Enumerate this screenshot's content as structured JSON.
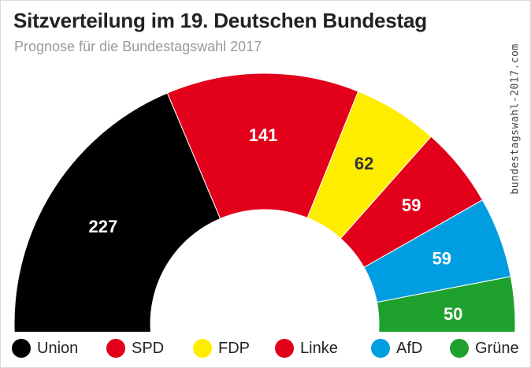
{
  "header": {
    "title": "Sitzverteilung im 19. Deutschen Bundestag",
    "subtitle": "Prognose für die Bundestagswahl 2017",
    "source": "bundestagswahl-2017.com"
  },
  "chart_data": {
    "type": "pie",
    "variant": "semicircle-parliament",
    "title": "Sitzverteilung im 19. Deutschen Bundestag",
    "subtitle": "Prognose für die Bundestagswahl 2017",
    "categories": [
      "Union",
      "SPD",
      "FDP",
      "Linke",
      "AfD",
      "Grüne"
    ],
    "values": [
      227,
      141,
      62,
      59,
      59,
      50
    ],
    "colors": [
      "#000000",
      "#e2001a",
      "#ffed00",
      "#e2001a",
      "#009ee0",
      "#1ea12d"
    ],
    "label_colors": [
      "#ffffff",
      "#ffffff",
      "#333333",
      "#ffffff",
      "#ffffff",
      "#ffffff"
    ],
    "legend_position": "bottom"
  }
}
